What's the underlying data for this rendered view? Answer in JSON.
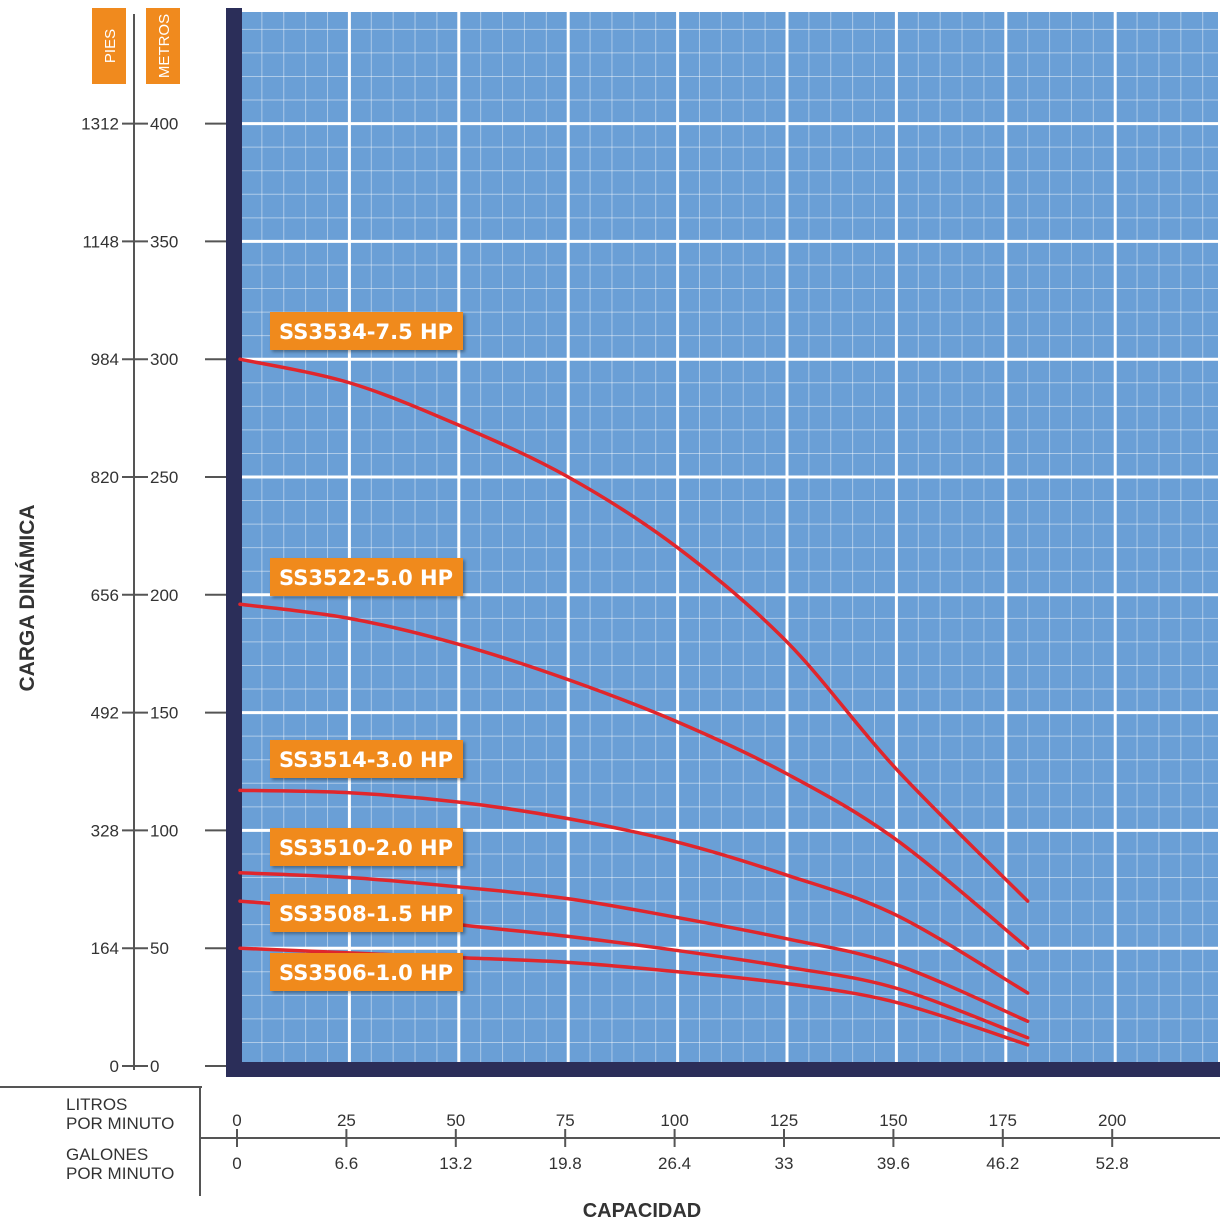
{
  "chart_data": {
    "type": "line",
    "title": "",
    "xlabel": "CAPACIDAD",
    "ylabel": "CARGA DINÁMICA",
    "y_units": {
      "feet_label": "PIES",
      "meters_label": "METROS"
    },
    "y_ticks_meters": [
      "400",
      "350",
      "300",
      "250",
      "200",
      "150",
      "100",
      "50",
      "0"
    ],
    "y_ticks_feet": [
      "1312",
      "1148",
      "984",
      "820",
      "656",
      "492",
      "328",
      "164",
      "0"
    ],
    "x_row_labels": {
      "lpm": [
        "LITROS",
        "POR MINUTO"
      ],
      "gpm": [
        "GALONES",
        "POR MINUTO"
      ]
    },
    "x_ticks_lpm": [
      "0",
      "25",
      "50",
      "75",
      "100",
      "125",
      "150",
      "175",
      "200"
    ],
    "x_ticks_gpm": [
      "0",
      "6.6",
      "13.2",
      "19.8",
      "26.4",
      "33",
      "39.6",
      "46.2",
      "52.8"
    ],
    "xlim": [
      0,
      225
    ],
    "ylim": [
      0,
      450
    ],
    "series": [
      {
        "name": "SS3534-7.5 HP",
        "x": [
          0,
          25,
          50,
          75,
          100,
          125,
          150,
          180
        ],
        "y": [
          300,
          290,
          272,
          250,
          220,
          180,
          126,
          70
        ]
      },
      {
        "name": "SS3522-5.0 HP",
        "x": [
          0,
          25,
          50,
          75,
          100,
          125,
          150,
          180
        ],
        "y": [
          196,
          190,
          179,
          164,
          146,
          124,
          96,
          50
        ]
      },
      {
        "name": "SS3514-3.0 HP",
        "x": [
          0,
          25,
          50,
          75,
          100,
          125,
          150,
          180
        ],
        "y": [
          117,
          116,
          112,
          105,
          95,
          81,
          64,
          31
        ]
      },
      {
        "name": "SS3510-2.0 HP",
        "x": [
          0,
          25,
          50,
          75,
          100,
          125,
          150,
          180
        ],
        "y": [
          82,
          80,
          76,
          71,
          63,
          54,
          43,
          19
        ]
      },
      {
        "name": "SS3508-1.5 HP",
        "x": [
          0,
          25,
          50,
          75,
          100,
          125,
          150,
          180
        ],
        "y": [
          70,
          66,
          60,
          55,
          49,
          42,
          33,
          12
        ]
      },
      {
        "name": "SS3506-1.0 HP",
        "x": [
          0,
          25,
          50,
          75,
          100,
          125,
          150,
          180
        ],
        "y": [
          50,
          48,
          46,
          44,
          40,
          35,
          27,
          9
        ]
      }
    ],
    "grid": true,
    "colors": {
      "plot_bg": "#6a9fd6",
      "grid": "#ffffff",
      "frame": "#2b2e59",
      "line": "#e0262c",
      "badge": "#f08a1e",
      "badge_text": "#ffffff"
    }
  }
}
